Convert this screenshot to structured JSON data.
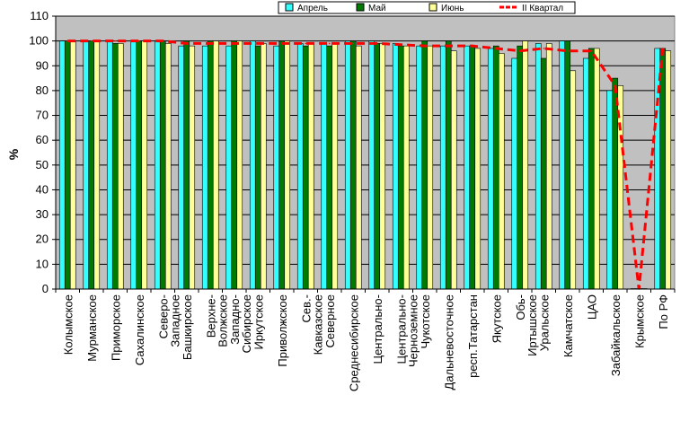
{
  "chart_data": {
    "type": "bar",
    "title": "",
    "xlabel": "",
    "ylabel": "%",
    "ylim": [
      0,
      110
    ],
    "yticks": [
      0,
      10,
      20,
      30,
      40,
      50,
      60,
      70,
      80,
      90,
      100,
      110
    ],
    "grid": "horizontal",
    "legend_position": "top-right",
    "categories": [
      "Колымское",
      "Мурманское",
      "Приморское",
      "Сахалинское",
      "Северо-\nЗападное",
      "Башкирское",
      "Верхне-\nВолжское",
      "Западно-\nСибирское",
      "Иркутское",
      "Приволжское",
      "Сев.-\nКавказское",
      "Северное",
      "Среднесибирское",
      "Центрально-",
      "Центрально-\nЧерноземное",
      "Чукотское",
      "Дальневосточное",
      "респ.Татарстан",
      "Якутское",
      "Обь-\nИртышское",
      "Уральское",
      "Камчатское",
      "ЦАО",
      "Забайкальское",
      "Крымское",
      "По РФ"
    ],
    "series": [
      {
        "name": "Апрель",
        "kind": "bar",
        "color": "#33ffff",
        "values": [
          100,
          100,
          100,
          100,
          100,
          98,
          98,
          98,
          100,
          98,
          99,
          99,
          100,
          100,
          99,
          98,
          98,
          98,
          97,
          93,
          99,
          100,
          93,
          80,
          0,
          97
        ]
      },
      {
        "name": "Май",
        "kind": "bar",
        "color": "#007a00",
        "values": [
          100,
          100,
          99,
          100,
          100,
          100,
          100,
          100,
          98,
          100,
          98,
          98,
          100,
          99,
          98,
          100,
          100,
          98,
          98,
          98,
          93,
          100,
          97,
          85,
          0,
          97
        ]
      },
      {
        "name": "Июнь",
        "kind": "bar",
        "color": "#ffff99",
        "values": [
          100,
          100,
          99,
          100,
          99,
          98,
          100,
          100,
          99,
          100,
          99,
          99,
          98,
          99,
          98,
          98,
          96,
          97,
          95,
          100,
          99,
          88,
          97,
          82,
          0,
          96
        ]
      },
      {
        "name": "II Квартал",
        "kind": "line",
        "color": "#ff0000",
        "values": [
          100,
          100,
          100,
          100,
          100,
          99,
          99,
          99,
          99,
          99,
          99,
          99,
          99,
          99,
          98.5,
          98,
          98,
          98,
          97,
          96,
          97,
          96,
          96,
          82,
          0,
          97
        ]
      }
    ]
  }
}
